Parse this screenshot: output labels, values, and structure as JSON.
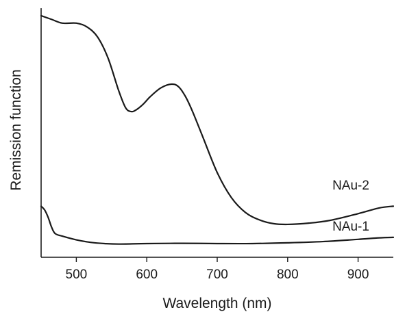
{
  "chart_data": {
    "type": "line",
    "xlabel": "Wavelength (nm)",
    "ylabel": "Remission function",
    "xlim": [
      450,
      950
    ],
    "ylim": [
      0,
      1
    ],
    "xticks": [
      500,
      600,
      700,
      800,
      900
    ],
    "yticks_shown": false,
    "grid": false,
    "legend": "none (direct labels at right end of lines)",
    "series": [
      {
        "name": "NAu-2",
        "x": [
          450,
          465,
          480,
          500,
          515,
          530,
          545,
          560,
          570,
          578,
          585,
          595,
          605,
          620,
          635,
          645,
          655,
          665,
          680,
          700,
          720,
          740,
          760,
          780,
          800,
          830,
          860,
          900,
          930,
          950
        ],
        "y": [
          0.97,
          0.955,
          0.94,
          0.94,
          0.925,
          0.885,
          0.8,
          0.67,
          0.6,
          0.585,
          0.592,
          0.615,
          0.645,
          0.68,
          0.695,
          0.685,
          0.645,
          0.585,
          0.48,
          0.34,
          0.24,
          0.18,
          0.15,
          0.135,
          0.132,
          0.137,
          0.148,
          0.175,
          0.198,
          0.205
        ]
      },
      {
        "name": "NAu-1",
        "x": [
          450,
          455,
          460,
          465,
          470,
          480,
          500,
          520,
          540,
          560,
          600,
          650,
          700,
          750,
          800,
          850,
          900,
          930,
          950
        ],
        "y": [
          0.205,
          0.19,
          0.16,
          0.12,
          0.095,
          0.085,
          0.07,
          0.06,
          0.055,
          0.053,
          0.055,
          0.056,
          0.055,
          0.055,
          0.058,
          0.063,
          0.072,
          0.078,
          0.08
        ]
      }
    ]
  }
}
